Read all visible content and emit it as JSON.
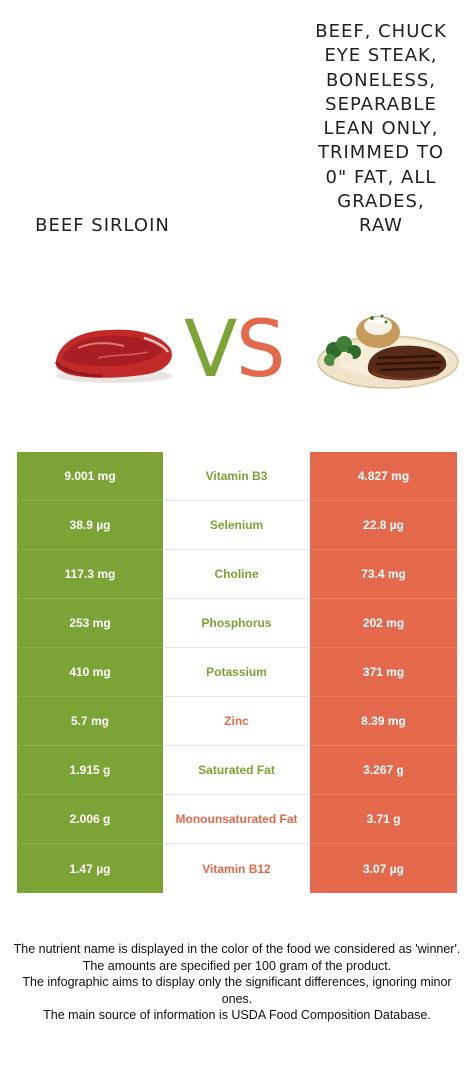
{
  "food_left": {
    "name": "Beef sirloin",
    "color": "#7ca335"
  },
  "food_right": {
    "name_lines": [
      "Beef, chuck",
      "eye steak,",
      "boneless,",
      "separable",
      "lean only,",
      "trimmed to",
      "0\" fat, all",
      "grades,",
      "raw"
    ],
    "color": "#e4694c"
  },
  "vs": {
    "v": "V",
    "s": "S"
  },
  "nutrients": [
    {
      "name": "Vitamin B3",
      "left": "9.001 mg",
      "right": "4.827 mg",
      "winner": "left"
    },
    {
      "name": "Selenium",
      "left": "38.9 µg",
      "right": "22.8 µg",
      "winner": "left"
    },
    {
      "name": "Choline",
      "left": "117.3 mg",
      "right": "73.4 mg",
      "winner": "left"
    },
    {
      "name": "Phosphorus",
      "left": "253 mg",
      "right": "202 mg",
      "winner": "left"
    },
    {
      "name": "Potassium",
      "left": "410 mg",
      "right": "371 mg",
      "winner": "left"
    },
    {
      "name": "Zinc",
      "left": "5.7 mg",
      "right": "8.39 mg",
      "winner": "right"
    },
    {
      "name": "Saturated Fat",
      "left": "1.915 g",
      "right": "3.267 g",
      "winner": "left"
    },
    {
      "name": "Monounsaturated Fat",
      "left": "2.006 g",
      "right": "3.71 g",
      "winner": "right"
    },
    {
      "name": "Vitamin B12",
      "left": "1.47 µg",
      "right": "3.07 µg",
      "winner": "right"
    }
  ],
  "footer": {
    "line1": "The nutrient name is displayed in the color of the food we considered as 'winner'.",
    "line2": "The amounts are specified per 100 gram of the product.",
    "line3": "The infographic aims to display only the significant differences, ignoring minor ones.",
    "line4": "The main source of information is USDA Food Composition Database."
  }
}
